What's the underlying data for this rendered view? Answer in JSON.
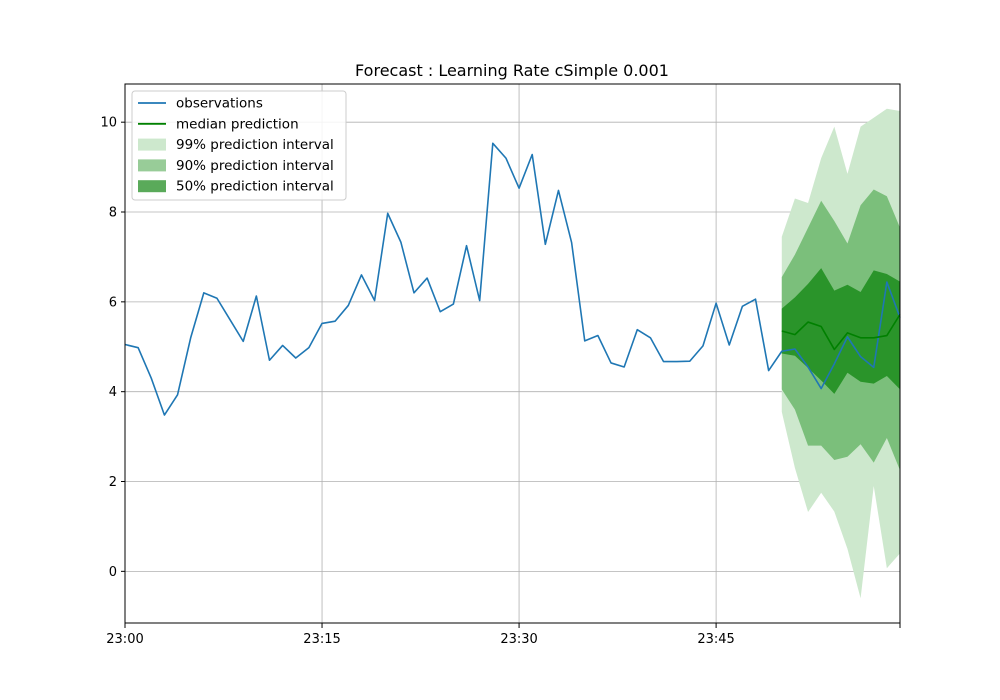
{
  "chart_data": {
    "type": "line",
    "title": "Forecast : Learning Rate cSimple 0.001",
    "xlabel": "",
    "ylabel": "",
    "x_unit": "minute",
    "x_start": "23:00",
    "x_range": [
      "23:00",
      "23:59"
    ],
    "ylim": [
      -1.15,
      10.85
    ],
    "x_ticks": [
      {
        "label": "23:00",
        "minute": 0
      },
      {
        "label": "23:15",
        "minute": 15
      },
      {
        "label": "23:30",
        "minute": 30
      },
      {
        "label": "23:45",
        "minute": 45
      },
      {
        "label": "",
        "minute": 59
      }
    ],
    "y_ticks": [
      0,
      2,
      4,
      6,
      8,
      10
    ],
    "grid": true,
    "legend_position": "top-left",
    "colors": {
      "observations": "#1f77b4",
      "median": "#008000",
      "band99": "#cde8cd",
      "band90": "#7bbf7b",
      "band50": "#2a942a"
    },
    "legend": [
      {
        "label": "observations",
        "kind": "line",
        "color": "#1f77b4"
      },
      {
        "label": "median prediction",
        "kind": "line",
        "color": "#008000"
      },
      {
        "label": "99% prediction interval",
        "kind": "patch",
        "color": "#cde8cd"
      },
      {
        "label": "90% prediction interval",
        "kind": "patch",
        "color": "#98cc98"
      },
      {
        "label": "50% prediction interval",
        "kind": "patch",
        "color": "#5aaa5a"
      }
    ],
    "series": [
      {
        "name": "observations",
        "x": [
          0,
          1,
          2,
          3,
          4,
          5,
          6,
          7,
          8,
          9,
          10,
          11,
          12,
          13,
          14,
          15,
          16,
          17,
          18,
          19,
          20,
          21,
          22,
          23,
          24,
          25,
          26,
          27,
          28,
          29,
          30,
          31,
          32,
          33,
          34,
          35,
          36,
          37,
          38,
          39,
          40,
          41,
          42,
          43,
          44,
          45,
          46,
          47,
          48,
          49,
          50,
          51,
          52,
          53,
          54,
          55,
          56,
          57,
          58,
          59
        ],
        "y": [
          5.05,
          4.98,
          4.3,
          3.48,
          3.93,
          5.2,
          6.2,
          6.08,
          5.6,
          5.12,
          6.13,
          4.7,
          5.03,
          4.75,
          4.98,
          5.52,
          5.57,
          5.92,
          6.6,
          6.03,
          7.97,
          7.33,
          6.2,
          6.53,
          5.78,
          5.95,
          7.25,
          6.03,
          9.53,
          9.2,
          8.53,
          9.28,
          7.28,
          8.48,
          7.32,
          5.13,
          5.25,
          4.64,
          4.55,
          5.38,
          5.2,
          4.67,
          4.67,
          4.68,
          5.02,
          5.97,
          5.04,
          5.9,
          6.06,
          4.47,
          4.9,
          4.95,
          4.55,
          4.07,
          4.62,
          5.22,
          4.78,
          4.54,
          6.44,
          5.65
        ]
      },
      {
        "name": "median prediction",
        "x": [
          50,
          51,
          52,
          53,
          54,
          55,
          56,
          57,
          58,
          59
        ],
        "y": [
          5.35,
          5.27,
          5.55,
          5.45,
          4.94,
          5.31,
          5.2,
          5.2,
          5.25,
          5.72
        ]
      }
    ],
    "bands": [
      {
        "name": "99% prediction interval",
        "x": [
          50,
          51,
          52,
          53,
          54,
          55,
          56,
          57,
          58,
          59
        ],
        "lower": [
          3.55,
          2.3,
          1.32,
          1.75,
          1.33,
          0.5,
          -0.6,
          1.9,
          0.07,
          0.4
        ],
        "upper": [
          7.45,
          8.3,
          8.2,
          9.2,
          9.9,
          8.85,
          9.9,
          10.1,
          10.3,
          10.25
        ]
      },
      {
        "name": "90% prediction interval",
        "x": [
          50,
          51,
          52,
          53,
          54,
          55,
          56,
          57,
          58,
          59
        ],
        "lower": [
          4.05,
          3.6,
          2.8,
          2.8,
          2.48,
          2.55,
          2.83,
          2.42,
          2.97,
          2.25
        ],
        "upper": [
          6.55,
          7.05,
          7.65,
          8.25,
          7.8,
          7.3,
          8.15,
          8.5,
          8.35,
          7.65
        ]
      },
      {
        "name": "50% prediction interval",
        "x": [
          50,
          51,
          52,
          53,
          54,
          55,
          56,
          57,
          58,
          59
        ],
        "lower": [
          4.85,
          4.8,
          4.53,
          4.25,
          3.95,
          4.42,
          4.22,
          4.18,
          4.35,
          4.05
        ],
        "upper": [
          5.85,
          6.1,
          6.4,
          6.75,
          6.25,
          6.38,
          6.22,
          6.7,
          6.62,
          6.45
        ]
      }
    ]
  }
}
